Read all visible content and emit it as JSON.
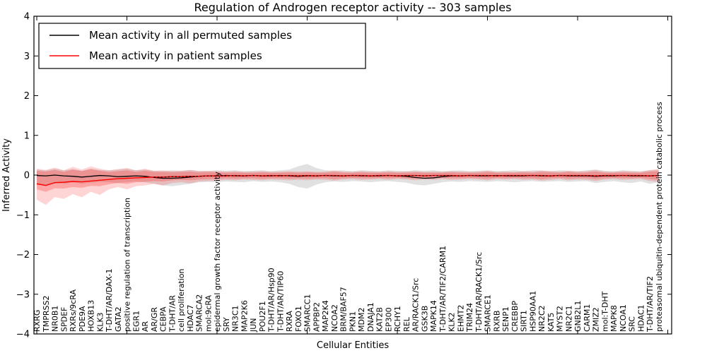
{
  "title": "Regulation of Androgen receptor activity -- 303 samples",
  "legend": [
    {
      "label": "Mean activity in all permuted samples",
      "color": "#000000"
    },
    {
      "label": "Mean activity in patient samples",
      "color": "#ff0000"
    }
  ],
  "colors": {
    "permuted_line": "#000000",
    "patient_line": "#ff0000",
    "permuted_band": "#bdbdbd",
    "patient_band": "#ff0000",
    "frame": "#000000",
    "background": "#ffffff"
  },
  "chart_data": {
    "type": "line",
    "title": "Regulation of Androgen receptor activity -- 303 samples",
    "xlabel": "Cellular Entities",
    "ylabel": "Inferred Activity",
    "ylim": [
      -4,
      4
    ],
    "yticks": [
      4,
      3,
      2,
      1,
      0,
      -1,
      -2,
      -3,
      -4
    ],
    "ytick_labels": [
      "4",
      "3",
      "2",
      "1",
      "0",
      "−1",
      "−2",
      "−3",
      "−4"
    ],
    "grid": false,
    "legend_position": "upper left",
    "sample_count": 303,
    "categories": [
      "RXRG",
      "TMPRSS2",
      "NR0B1",
      "SPDEF",
      "RXRs/9cRA",
      "PDE9A",
      "HOXB13",
      "KLK3",
      "T-DHT/AR/DAX-1",
      "GATA2",
      "positive regulation of transcription",
      "EGR1",
      "AR",
      "AR/GR",
      "CEBPA",
      "T-DHT/AR",
      "cell proliferation",
      "HDAC7",
      "SMARCA2",
      "mol:9cRA",
      "epidermal growth factor receptor activity",
      "SRY",
      "NR3C1",
      "MAP2K6",
      "JUN",
      "POU2F1",
      "T-DHT/AR/Hsp90",
      "T-DHT/AR/TIP60",
      "RXRA",
      "FOXO1",
      "SMARCC1",
      "APPBP2",
      "MAP2K4",
      "NCOA2",
      "BRM/BAF57",
      "PKN1",
      "MDM2",
      "DNAJA1",
      "KAT2B",
      "EP300",
      "RCHY1",
      "REL",
      "AR/RACK1/Src",
      "GSK3B",
      "MAPK14",
      "T-DHT/AR/TIF2/CARM1",
      "KLK2",
      "EHMT2",
      "TRIM24",
      "T-DHT/AR/RACK1/Src",
      "SMARCE1",
      "RXRB",
      "SENP1",
      "CREBBP",
      "SIRT1",
      "HSP90AA1",
      "NR2C2",
      "KAT5",
      "MYST2",
      "NR2C1",
      "GNB2L1",
      "CARM1",
      "ZMIZ2",
      "mol:T-DHT",
      "MAPK8",
      "NCOA1",
      "SRC",
      "HDAC1",
      "T-DHT/AR/TIF2",
      "proteasomal ubiquitin-dependent protein catabolic process"
    ],
    "series": [
      {
        "name": "Mean activity in all permuted samples",
        "color": "#000000",
        "width": 1.3,
        "values": [
          -0.01,
          -0.02,
          0.0,
          -0.02,
          -0.03,
          -0.05,
          -0.03,
          -0.01,
          -0.02,
          -0.04,
          -0.03,
          -0.02,
          -0.03,
          -0.06,
          -0.08,
          -0.08,
          -0.07,
          -0.05,
          -0.03,
          -0.02,
          -0.02,
          -0.01,
          -0.02,
          -0.02,
          -0.01,
          -0.02,
          -0.02,
          -0.01,
          -0.02,
          -0.03,
          -0.02,
          -0.02,
          -0.01,
          -0.02,
          -0.02,
          -0.01,
          -0.02,
          -0.02,
          -0.02,
          -0.01,
          -0.02,
          -0.03,
          -0.06,
          -0.08,
          -0.07,
          -0.04,
          -0.02,
          -0.02,
          -0.01,
          -0.02,
          -0.02,
          -0.01,
          -0.02,
          -0.02,
          -0.02,
          -0.01,
          -0.02,
          -0.02,
          -0.01,
          -0.02,
          -0.02,
          -0.02,
          -0.03,
          -0.02,
          -0.02,
          -0.01,
          -0.02,
          -0.02,
          -0.02,
          -0.01
        ]
      },
      {
        "name": "Mean activity in patient samples",
        "color": "#ff0000",
        "width": 1.4,
        "values": [
          -0.22,
          -0.26,
          -0.19,
          -0.18,
          -0.16,
          -0.17,
          -0.15,
          -0.13,
          -0.11,
          -0.09,
          -0.08,
          -0.07,
          -0.06,
          -0.05,
          -0.05,
          -0.04,
          -0.04,
          -0.03,
          -0.03,
          -0.02,
          -0.02,
          -0.02,
          -0.01,
          -0.02,
          -0.01,
          -0.02,
          -0.01,
          -0.02,
          -0.01,
          -0.02,
          -0.01,
          -0.02,
          -0.01,
          -0.01,
          -0.02,
          -0.01,
          -0.01,
          -0.02,
          -0.01,
          -0.01,
          -0.02,
          -0.01,
          -0.01,
          -0.02,
          -0.01,
          -0.01,
          -0.01,
          -0.02,
          -0.01,
          -0.01,
          -0.01,
          -0.02,
          -0.01,
          -0.01,
          -0.01,
          -0.01,
          -0.01,
          -0.02,
          -0.01,
          -0.01,
          -0.01,
          -0.01,
          -0.02,
          -0.01,
          -0.01,
          -0.01,
          -0.01,
          -0.01,
          -0.02,
          -0.01
        ]
      }
    ],
    "overlap_dash": {
      "color": "#000000",
      "from_index": 13,
      "dasharray": "2 3",
      "width": 1.2
    },
    "bands": [
      {
        "name": "permuted-band",
        "color": "#bdbdbd",
        "opacity": 0.45,
        "upper": [
          0.14,
          0.12,
          0.16,
          0.12,
          0.15,
          0.11,
          0.16,
          0.13,
          0.12,
          0.14,
          0.16,
          0.12,
          0.14,
          0.11,
          0.1,
          0.12,
          0.11,
          0.13,
          0.11,
          0.1,
          0.12,
          0.11,
          0.12,
          0.1,
          0.11,
          0.12,
          0.1,
          0.12,
          0.14,
          0.22,
          0.28,
          0.18,
          0.12,
          0.11,
          0.12,
          0.1,
          0.12,
          0.11,
          0.1,
          0.12,
          0.11,
          0.1,
          0.12,
          0.11,
          0.12,
          0.1,
          0.11,
          0.12,
          0.1,
          0.11,
          0.12,
          0.1,
          0.11,
          0.12,
          0.1,
          0.12,
          0.11,
          0.1,
          0.12,
          0.11,
          0.1,
          0.12,
          0.14,
          0.11,
          0.1,
          0.12,
          0.11,
          0.1,
          0.12,
          0.14
        ],
        "lower": [
          -0.22,
          -0.25,
          -0.2,
          -0.22,
          -0.18,
          -0.22,
          -0.19,
          -0.17,
          -0.18,
          -0.2,
          -0.17,
          -0.16,
          -0.18,
          -0.22,
          -0.26,
          -0.28,
          -0.25,
          -0.22,
          -0.18,
          -0.17,
          -0.18,
          -0.16,
          -0.17,
          -0.18,
          -0.15,
          -0.17,
          -0.16,
          -0.18,
          -0.22,
          -0.3,
          -0.34,
          -0.24,
          -0.18,
          -0.16,
          -0.17,
          -0.15,
          -0.16,
          -0.18,
          -0.16,
          -0.15,
          -0.17,
          -0.19,
          -0.24,
          -0.26,
          -0.22,
          -0.18,
          -0.16,
          -0.17,
          -0.15,
          -0.16,
          -0.17,
          -0.15,
          -0.16,
          -0.18,
          -0.16,
          -0.15,
          -0.17,
          -0.16,
          -0.15,
          -0.17,
          -0.16,
          -0.15,
          -0.2,
          -0.17,
          -0.15,
          -0.18,
          -0.2,
          -0.16,
          -0.22,
          -0.18
        ]
      },
      {
        "name": "patient-band-outer",
        "color": "#ff0000",
        "opacity": 0.17,
        "upper": [
          0.16,
          0.13,
          0.19,
          0.12,
          0.21,
          0.14,
          0.22,
          0.16,
          0.12,
          0.15,
          0.18,
          0.12,
          0.16,
          0.11,
          0.12,
          0.1,
          0.11,
          0.13,
          0.1,
          0.11,
          0.1,
          0.09,
          0.1,
          0.08,
          0.09,
          0.1,
          0.08,
          0.09,
          0.1,
          0.09,
          0.1,
          0.08,
          0.09,
          0.12,
          0.09,
          0.08,
          0.1,
          0.09,
          0.08,
          0.1,
          0.08,
          0.09,
          0.1,
          0.08,
          0.09,
          0.08,
          0.1,
          0.09,
          0.08,
          0.09,
          0.11,
          0.08,
          0.09,
          0.08,
          0.1,
          0.09,
          0.12,
          0.1,
          0.09,
          0.11,
          0.09,
          0.1,
          0.13,
          0.09,
          0.08,
          0.1,
          0.09,
          0.08,
          0.13,
          0.15
        ],
        "lower": [
          -0.62,
          -0.75,
          -0.55,
          -0.6,
          -0.48,
          -0.56,
          -0.42,
          -0.5,
          -0.36,
          -0.3,
          -0.36,
          -0.28,
          -0.26,
          -0.22,
          -0.26,
          -0.2,
          -0.18,
          -0.21,
          -0.16,
          -0.15,
          -0.14,
          -0.12,
          -0.13,
          -0.11,
          -0.12,
          -0.13,
          -0.11,
          -0.12,
          -0.13,
          -0.12,
          -0.13,
          -0.11,
          -0.12,
          -0.14,
          -0.11,
          -0.1,
          -0.12,
          -0.11,
          -0.1,
          -0.12,
          -0.1,
          -0.11,
          -0.13,
          -0.11,
          -0.12,
          -0.1,
          -0.12,
          -0.11,
          -0.1,
          -0.11,
          -0.13,
          -0.1,
          -0.11,
          -0.1,
          -0.12,
          -0.11,
          -0.14,
          -0.12,
          -0.1,
          -0.13,
          -0.11,
          -0.12,
          -0.15,
          -0.11,
          -0.1,
          -0.12,
          -0.11,
          -0.1,
          -0.15,
          -0.17
        ]
      },
      {
        "name": "patient-band-inner",
        "color": "#ff0000",
        "opacity": 0.22,
        "upper": [
          0.11,
          0.09,
          0.13,
          0.08,
          0.14,
          0.1,
          0.15,
          0.11,
          0.08,
          0.1,
          0.12,
          0.08,
          0.11,
          0.08,
          0.08,
          0.07,
          0.08,
          0.09,
          0.07,
          0.08,
          0.07,
          0.06,
          0.07,
          0.06,
          0.06,
          0.07,
          0.06,
          0.06,
          0.07,
          0.06,
          0.07,
          0.06,
          0.06,
          0.08,
          0.06,
          0.06,
          0.07,
          0.06,
          0.06,
          0.07,
          0.06,
          0.06,
          0.07,
          0.06,
          0.06,
          0.06,
          0.07,
          0.06,
          0.06,
          0.06,
          0.08,
          0.06,
          0.06,
          0.06,
          0.07,
          0.06,
          0.08,
          0.07,
          0.06,
          0.08,
          0.06,
          0.07,
          0.09,
          0.06,
          0.06,
          0.07,
          0.06,
          0.06,
          0.09,
          0.1
        ],
        "lower": [
          -0.36,
          -0.42,
          -0.33,
          -0.34,
          -0.3,
          -0.32,
          -0.27,
          -0.28,
          -0.23,
          -0.2,
          -0.22,
          -0.18,
          -0.17,
          -0.15,
          -0.16,
          -0.13,
          -0.12,
          -0.13,
          -0.11,
          -0.1,
          -0.1,
          -0.08,
          -0.09,
          -0.08,
          -0.08,
          -0.09,
          -0.08,
          -0.08,
          -0.09,
          -0.08,
          -0.09,
          -0.08,
          -0.08,
          -0.1,
          -0.08,
          -0.07,
          -0.08,
          -0.08,
          -0.07,
          -0.08,
          -0.07,
          -0.08,
          -0.09,
          -0.08,
          -0.08,
          -0.07,
          -0.08,
          -0.08,
          -0.07,
          -0.08,
          -0.09,
          -0.07,
          -0.08,
          -0.07,
          -0.08,
          -0.08,
          -0.1,
          -0.08,
          -0.07,
          -0.09,
          -0.08,
          -0.08,
          -0.1,
          -0.08,
          -0.07,
          -0.08,
          -0.08,
          -0.07,
          -0.1,
          -0.12
        ]
      }
    ]
  }
}
